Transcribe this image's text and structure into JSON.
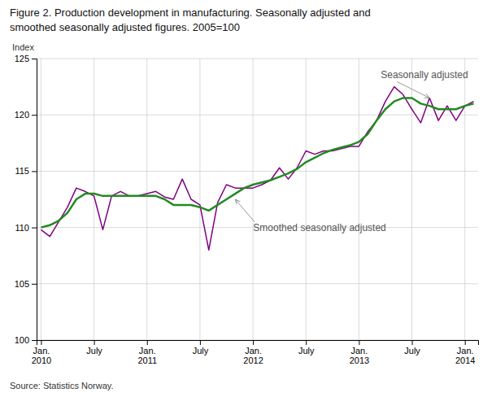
{
  "chart_data": {
    "type": "line",
    "title": "Figure 2. Production development in manufacturing. Seasonally adjusted and\nsmoothed seasonally adjusted figures. 2005=100",
    "y_label": "Index",
    "source": "Source: Statistics Norway.",
    "categories": [
      "Jan.\n2010",
      null,
      null,
      null,
      null,
      null,
      "July",
      null,
      null,
      null,
      null,
      null,
      "Jan.\n2011",
      null,
      null,
      null,
      null,
      null,
      "July",
      null,
      null,
      null,
      null,
      null,
      "Jan.\n2012",
      null,
      null,
      null,
      null,
      null,
      "July",
      null,
      null,
      null,
      null,
      null,
      "Jan.\n2013",
      null,
      null,
      null,
      null,
      null,
      "July",
      null,
      null,
      null,
      null,
      null,
      "Jan.\n2014",
      null
    ],
    "series": [
      {
        "color": "#800080",
        "values": [
          109.8,
          109.2,
          110.5,
          111.8,
          113.5,
          113.2,
          112.8,
          109.8,
          112.8,
          113.2,
          112.8,
          112.8,
          113.0,
          113.2,
          112.7,
          112.5,
          114.3,
          112.5,
          112.0,
          108.0,
          112.2,
          113.8,
          113.5,
          113.5,
          113.5,
          113.8,
          114.2,
          115.3,
          114.3,
          115.3,
          116.8,
          116.5,
          116.8,
          116.8,
          117.0,
          117.2,
          117.2,
          118.5,
          119.5,
          121.2,
          122.5,
          121.8,
          120.5,
          119.3,
          121.5,
          119.5,
          120.8,
          119.5,
          120.8,
          121.2
        ]
      },
      {
        "color": "#228B22",
        "values": [
          110.0,
          110.2,
          110.6,
          111.3,
          112.5,
          113.0,
          113.0,
          112.8,
          112.8,
          112.8,
          112.8,
          112.8,
          112.8,
          112.8,
          112.5,
          112.0,
          112.0,
          112.0,
          111.8,
          111.5,
          112.0,
          112.5,
          113.0,
          113.5,
          113.8,
          114.0,
          114.2,
          114.5,
          114.8,
          115.2,
          115.8,
          116.2,
          116.6,
          116.9,
          117.1,
          117.3,
          117.6,
          118.3,
          119.5,
          120.5,
          121.2,
          121.5,
          121.5,
          121.0,
          120.8,
          120.5,
          120.5,
          120.5,
          120.8,
          121.0
        ]
      }
    ],
    "ylim": [
      100,
      125
    ],
    "yticks": [
      100,
      105,
      110,
      115,
      120,
      125
    ],
    "grid": true,
    "annotations": [
      {
        "text": "Seasonally adjusted",
        "x": 44,
        "y": 121.5
      },
      {
        "text": "Smoothed seasonally adjusted",
        "x": 22,
        "y": 112.5
      }
    ]
  }
}
